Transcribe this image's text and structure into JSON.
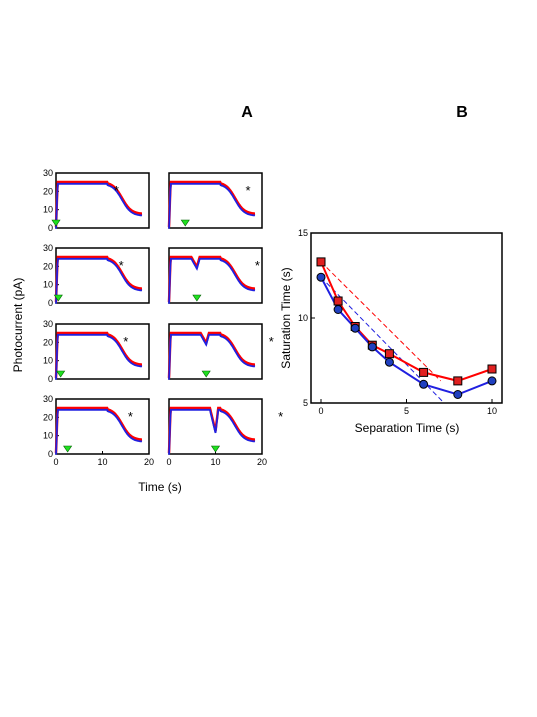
{
  "panel_labels": {
    "a": "A",
    "b": "B"
  },
  "colors": {
    "red": "#ff0000",
    "blue": "#2020e0",
    "green": "#20e020",
    "marker_red": "#e02020",
    "marker_blue": "#2040c0"
  },
  "panel_a": {
    "ylabel": "Photocurrent (pA)",
    "xlabel": "Time (s)",
    "yticks": [
      "0",
      "10",
      "20",
      "30"
    ],
    "xticks": [
      "0",
      "10",
      "20"
    ],
    "star_symbol": "*"
  },
  "chart_data": [
    {
      "type": "line",
      "panel": "A",
      "xlabel": "Time (s)",
      "ylabel": "Photocurrent (pA)",
      "xlim": [
        0,
        20
      ],
      "ylim": [
        0,
        30
      ],
      "grid": false,
      "layout": "4 rows x 2 columns of small multiples",
      "series_names": [
        "red trace",
        "blue trace"
      ],
      "panels": [
        {
          "flash_time": 0,
          "star_time": 13,
          "second_flash": false
        },
        {
          "flash_time": 3.5,
          "star_time": 17,
          "second_flash": false
        },
        {
          "flash_time": 0.5,
          "star_time": 14,
          "second_flash": false
        },
        {
          "flash_time": 6,
          "star_time": 19,
          "second_flash": true
        },
        {
          "flash_time": 1,
          "star_time": 15,
          "second_flash": false
        },
        {
          "flash_time": 8,
          "star_time": 22,
          "second_flash": true
        },
        {
          "flash_time": 2.5,
          "star_time": 16,
          "second_flash": false
        },
        {
          "flash_time": 10,
          "star_time": 24,
          "second_flash": true
        }
      ]
    },
    {
      "type": "scatter",
      "panel": "B",
      "xlabel": "Separation Time (s)",
      "ylabel": "Saturation Time (s)",
      "xlim": [
        0,
        10
      ],
      "ylim": [
        5,
        15
      ],
      "xticks": [
        "0",
        "5",
        "10"
      ],
      "yticks": [
        "5",
        "10",
        "15"
      ],
      "grid": false,
      "series": [
        {
          "color": "red",
          "marker": "square",
          "x": [
            0,
            1,
            2,
            3,
            4,
            6,
            8,
            10
          ],
          "y": [
            13.3,
            11.0,
            9.5,
            8.4,
            7.9,
            6.8,
            6.3,
            7.0
          ]
        },
        {
          "color": "blue",
          "marker": "circle",
          "x": [
            0,
            1,
            2,
            3,
            4,
            6,
            8,
            10
          ],
          "y": [
            12.4,
            10.5,
            9.4,
            8.3,
            7.4,
            6.1,
            5.5,
            6.3
          ]
        }
      ],
      "dashed_lines": [
        {
          "color": "red",
          "from": [
            0,
            13.3
          ],
          "to": [
            7.0,
            6.3
          ]
        },
        {
          "color": "blue",
          "from": [
            0,
            12.4
          ],
          "to": [
            7.2,
            5.0
          ]
        }
      ]
    }
  ]
}
